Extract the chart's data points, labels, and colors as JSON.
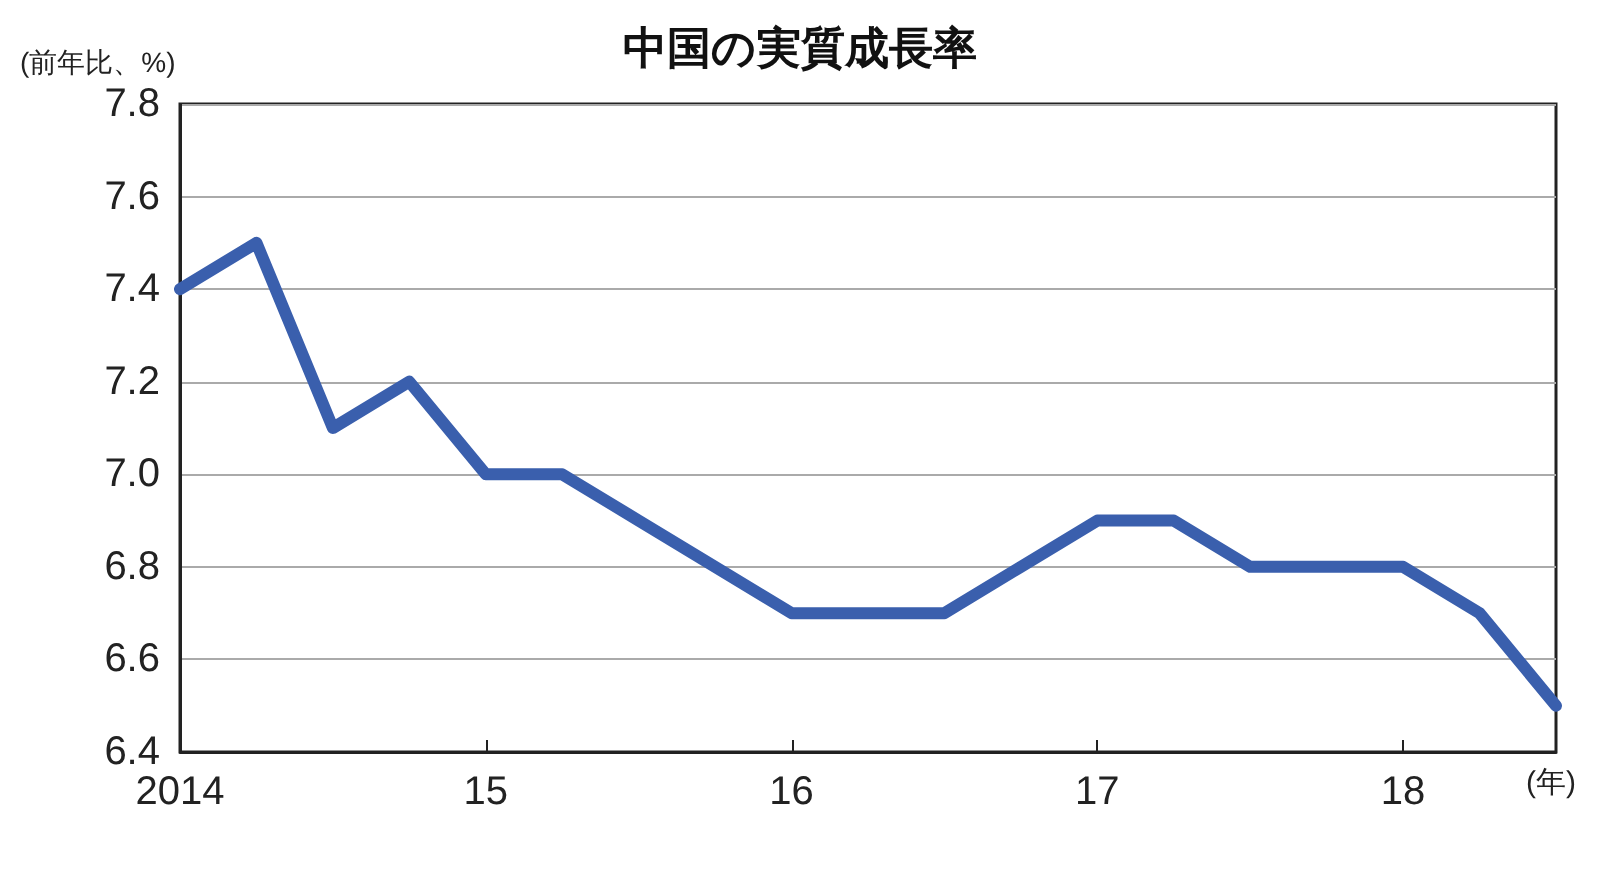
{
  "chart_data": {
    "type": "line",
    "title": "中国の実質成長率",
    "ylabel": "(前年比、%)",
    "xlabel": "(年)",
    "x": [
      2014,
      2014.25,
      2014.5,
      2014.75,
      2015,
      2015.25,
      2015.5,
      2015.75,
      2016,
      2016.25,
      2016.5,
      2016.75,
      2017,
      2017.25,
      2017.5,
      2017.75,
      2018,
      2018.25,
      2018.5
    ],
    "series": [
      {
        "color": "#3a5fad",
        "values": [
          7.4,
          7.5,
          7.1,
          7.2,
          7.0,
          7.0,
          6.9,
          6.8,
          6.7,
          6.7,
          6.7,
          6.8,
          6.9,
          6.9,
          6.8,
          6.8,
          6.8,
          6.7,
          6.5
        ]
      }
    ],
    "xlim": [
      2014,
      2018.5
    ],
    "xticks": [
      {
        "value": 2014,
        "label": "2014"
      },
      {
        "value": 2015,
        "label": "15"
      },
      {
        "value": 2016,
        "label": "16"
      },
      {
        "value": 2017,
        "label": "17"
      },
      {
        "value": 2018,
        "label": "18"
      }
    ],
    "ylim": [
      6.4,
      7.8
    ],
    "yticks": [
      {
        "value": 6.4,
        "label": "6.4"
      },
      {
        "value": 6.6,
        "label": "6.6"
      },
      {
        "value": 6.8,
        "label": "6.8"
      },
      {
        "value": 7.0,
        "label": "7.0"
      },
      {
        "value": 7.2,
        "label": "7.2"
      },
      {
        "value": 7.4,
        "label": "7.4"
      },
      {
        "value": 7.6,
        "label": "7.6"
      },
      {
        "value": 7.8,
        "label": "7.8"
      }
    ],
    "grid": "y",
    "marker": "none",
    "line_style": "solid"
  }
}
